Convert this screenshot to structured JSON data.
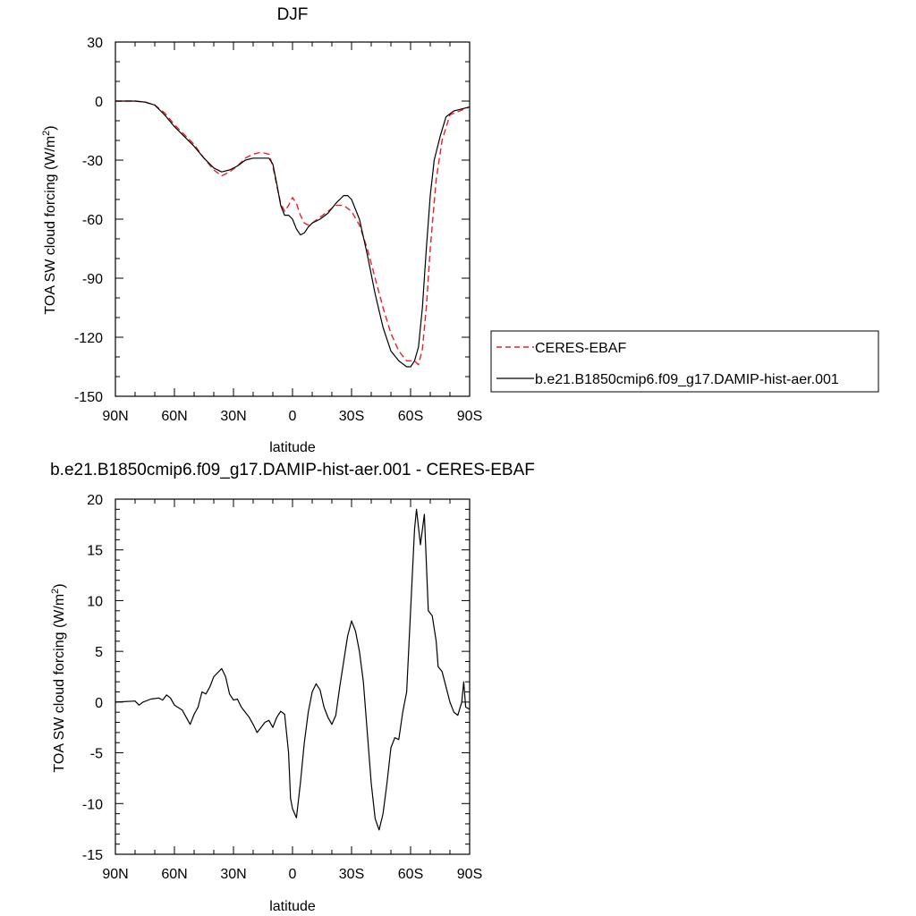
{
  "chart_data": [
    {
      "type": "line",
      "title": "DJF",
      "xlabel": "latitude",
      "ylabel": "TOA SW cloud forcing (W/m",
      "ylabel_sup": "2",
      "ylabel_close": ")",
      "xlim": [
        90,
        -90
      ],
      "ylim": [
        -150,
        30
      ],
      "xticks": [
        {
          "v": 90,
          "label": "90N"
        },
        {
          "v": 60,
          "label": "60N"
        },
        {
          "v": 30,
          "label": "30N"
        },
        {
          "v": 0,
          "label": "0"
        },
        {
          "v": -30,
          "label": "30S"
        },
        {
          "v": -60,
          "label": "60S"
        },
        {
          "v": -90,
          "label": "90S"
        }
      ],
      "yticks": [
        30,
        0,
        -30,
        -60,
        -90,
        -120,
        -150
      ],
      "legend_position": "right",
      "series": [
        {
          "name": "CERES-EBAF",
          "color": "#e8212a",
          "dash": "dashed",
          "points": [
            [
              90,
              0
            ],
            [
              80,
              0
            ],
            [
              75,
              -0.5
            ],
            [
              70,
              -2
            ],
            [
              65,
              -6
            ],
            [
              60,
              -12
            ],
            [
              55,
              -17
            ],
            [
              50,
              -22
            ],
            [
              45,
              -29
            ],
            [
              40,
              -35
            ],
            [
              36,
              -38
            ],
            [
              32,
              -36
            ],
            [
              28,
              -33
            ],
            [
              24,
              -29
            ],
            [
              20,
              -27
            ],
            [
              16,
              -26
            ],
            [
              12,
              -27
            ],
            [
              10,
              -33
            ],
            [
              8,
              -43
            ],
            [
              6,
              -52
            ],
            [
              4,
              -56
            ],
            [
              2,
              -53
            ],
            [
              0,
              -49
            ],
            [
              -2,
              -52
            ],
            [
              -4,
              -58
            ],
            [
              -6,
              -62
            ],
            [
              -8,
              -63
            ],
            [
              -10,
              -62
            ],
            [
              -14,
              -59
            ],
            [
              -18,
              -56
            ],
            [
              -22,
              -53
            ],
            [
              -26,
              -53
            ],
            [
              -30,
              -56
            ],
            [
              -34,
              -63
            ],
            [
              -38,
              -75
            ],
            [
              -42,
              -90
            ],
            [
              -46,
              -105
            ],
            [
              -50,
              -118
            ],
            [
              -54,
              -127
            ],
            [
              -58,
              -132
            ],
            [
              -62,
              -132
            ],
            [
              -64,
              -134
            ],
            [
              -66,
              -126
            ],
            [
              -68,
              -105
            ],
            [
              -70,
              -75
            ],
            [
              -73,
              -40
            ],
            [
              -76,
              -20
            ],
            [
              -80,
              -7
            ],
            [
              -85,
              -5
            ],
            [
              -90,
              -3
            ]
          ]
        },
        {
          "name": "b.e21.B1850cmip6.f09_g17.DAMIP-hist-aer.001",
          "color": "#000000",
          "dash": "solid",
          "points": [
            [
              90,
              0
            ],
            [
              80,
              0
            ],
            [
              75,
              -0.5
            ],
            [
              70,
              -2
            ],
            [
              65,
              -7
            ],
            [
              60,
              -13
            ],
            [
              55,
              -18
            ],
            [
              50,
              -23
            ],
            [
              45,
              -29
            ],
            [
              40,
              -34
            ],
            [
              36,
              -36
            ],
            [
              32,
              -35
            ],
            [
              28,
              -33
            ],
            [
              24,
              -30
            ],
            [
              20,
              -29
            ],
            [
              16,
              -29
            ],
            [
              12,
              -29
            ],
            [
              10,
              -32
            ],
            [
              8,
              -42
            ],
            [
              6,
              -53
            ],
            [
              4,
              -58
            ],
            [
              2,
              -58
            ],
            [
              0,
              -60
            ],
            [
              -2,
              -65
            ],
            [
              -4,
              -68
            ],
            [
              -6,
              -67
            ],
            [
              -8,
              -64
            ],
            [
              -10,
              -62
            ],
            [
              -14,
              -60
            ],
            [
              -18,
              -57
            ],
            [
              -22,
              -52
            ],
            [
              -26,
              -48
            ],
            [
              -28,
              -48
            ],
            [
              -30,
              -50
            ],
            [
              -34,
              -60
            ],
            [
              -38,
              -78
            ],
            [
              -42,
              -98
            ],
            [
              -46,
              -115
            ],
            [
              -50,
              -127
            ],
            [
              -54,
              -132
            ],
            [
              -58,
              -135
            ],
            [
              -60,
              -135
            ],
            [
              -62,
              -132
            ],
            [
              -64,
              -125
            ],
            [
              -66,
              -105
            ],
            [
              -68,
              -75
            ],
            [
              -70,
              -48
            ],
            [
              -72,
              -30
            ],
            [
              -75,
              -18
            ],
            [
              -78,
              -8
            ],
            [
              -82,
              -5
            ],
            [
              -90,
              -3
            ]
          ]
        }
      ]
    },
    {
      "type": "line",
      "title": "b.e21.B1850cmip6.f09_g17.DAMIP-hist-aer.001 - CERES-EBAF",
      "xlabel": "latitude",
      "ylabel": "TOA SW cloud forcing (W/m",
      "ylabel_sup": "2",
      "ylabel_close": ")",
      "xlim": [
        90,
        -90
      ],
      "ylim": [
        -15,
        20
      ],
      "xticks": [
        {
          "v": 90,
          "label": "90N"
        },
        {
          "v": 60,
          "label": "60N"
        },
        {
          "v": 30,
          "label": "30N"
        },
        {
          "v": 0,
          "label": "0"
        },
        {
          "v": -30,
          "label": "30S"
        },
        {
          "v": -60,
          "label": "60S"
        },
        {
          "v": -90,
          "label": "90S"
        }
      ],
      "yticks": [
        20,
        15,
        10,
        5,
        0,
        -5,
        -10,
        -15
      ],
      "series": [
        {
          "color": "#000000",
          "dash": "solid",
          "points": [
            [
              90,
              0
            ],
            [
              80,
              0.1
            ],
            [
              78,
              -0.3
            ],
            [
              76,
              0
            ],
            [
              72,
              0.3
            ],
            [
              68,
              0.4
            ],
            [
              66,
              0.2
            ],
            [
              64,
              0.7
            ],
            [
              62,
              0.4
            ],
            [
              60,
              -0.3
            ],
            [
              56,
              -0.8
            ],
            [
              54,
              -1.5
            ],
            [
              52,
              -2.2
            ],
            [
              50,
              -1.2
            ],
            [
              48,
              -0.5
            ],
            [
              46,
              1
            ],
            [
              44,
              0.8
            ],
            [
              42,
              1.5
            ],
            [
              40,
              2.5
            ],
            [
              36,
              3.3
            ],
            [
              34,
              2.5
            ],
            [
              32,
              0.8
            ],
            [
              30,
              0.2
            ],
            [
              28,
              0.3
            ],
            [
              26,
              -0.5
            ],
            [
              24,
              -1
            ],
            [
              22,
              -1.5
            ],
            [
              20,
              -2.2
            ],
            [
              18,
              -3
            ],
            [
              16,
              -2.5
            ],
            [
              14,
              -2
            ],
            [
              12,
              -1.8
            ],
            [
              10,
              -2.5
            ],
            [
              8,
              -1.5
            ],
            [
              6,
              -0.9
            ],
            [
              4,
              -1.2
            ],
            [
              2,
              -5
            ],
            [
              1,
              -9.5
            ],
            [
              0,
              -10.5
            ],
            [
              -2,
              -11.4
            ],
            [
              -4,
              -8
            ],
            [
              -6,
              -4
            ],
            [
              -8,
              -1
            ],
            [
              -10,
              1
            ],
            [
              -12,
              1.8
            ],
            [
              -14,
              1.2
            ],
            [
              -16,
              -0.5
            ],
            [
              -18,
              -1.5
            ],
            [
              -20,
              -2.2
            ],
            [
              -22,
              -1.3
            ],
            [
              -24,
              1.5
            ],
            [
              -26,
              4
            ],
            [
              -28,
              6.5
            ],
            [
              -30,
              8
            ],
            [
              -32,
              7
            ],
            [
              -34,
              5
            ],
            [
              -36,
              2
            ],
            [
              -38,
              -3
            ],
            [
              -40,
              -8
            ],
            [
              -42,
              -11.5
            ],
            [
              -44,
              -12.6
            ],
            [
              -46,
              -11
            ],
            [
              -48,
              -8
            ],
            [
              -50,
              -4.5
            ],
            [
              -52,
              -3.5
            ],
            [
              -54,
              -3.7
            ],
            [
              -56,
              -1
            ],
            [
              -58,
              1
            ],
            [
              -60,
              9
            ],
            [
              -62,
              17
            ],
            [
              -63,
              19
            ],
            [
              -65,
              15.5
            ],
            [
              -67,
              18.5
            ],
            [
              -69,
              9
            ],
            [
              -71,
              8.5
            ],
            [
              -73,
              6
            ],
            [
              -74,
              3.5
            ],
            [
              -76,
              3
            ],
            [
              -78,
              1.5
            ],
            [
              -80,
              0
            ],
            [
              -82,
              -1
            ],
            [
              -84,
              -1.3
            ],
            [
              -86,
              0
            ],
            [
              -87,
              2
            ],
            [
              -88,
              -0.5
            ],
            [
              -90,
              -0.7
            ]
          ]
        }
      ]
    }
  ]
}
